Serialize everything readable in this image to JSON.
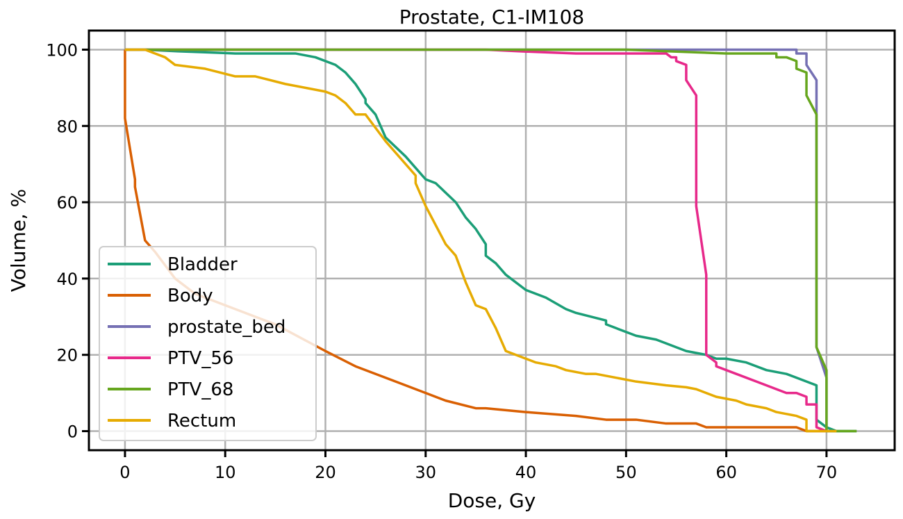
{
  "chart_data": {
    "type": "line",
    "title": "Prostate, C1-IM108",
    "xlabel": "Dose, Gy",
    "ylabel": "Volume, %",
    "xlim": [
      -3.6,
      76.8
    ],
    "ylim": [
      -5,
      105
    ],
    "xticks": [
      0,
      10,
      20,
      30,
      40,
      50,
      60,
      70
    ],
    "yticks": [
      0,
      20,
      40,
      60,
      80,
      100
    ],
    "grid": true,
    "legend_position": "lower-left",
    "series": [
      {
        "name": "Bladder",
        "color": "#1b9e77",
        "x": [
          0,
          2,
          5,
          8,
          10,
          11,
          14,
          17,
          19,
          21,
          22,
          23,
          24,
          24,
          25,
          26,
          28,
          30,
          31,
          33,
          34,
          35,
          36,
          36,
          37,
          38,
          40,
          42,
          44,
          45,
          48,
          48,
          49,
          51,
          53,
          54,
          56,
          58,
          59,
          60,
          62,
          64,
          66,
          68,
          69,
          69,
          69.5,
          70,
          71,
          73
        ],
        "y": [
          100,
          100,
          99.6,
          99.3,
          99.1,
          99,
          99,
          99,
          98,
          96,
          94,
          91,
          87,
          86,
          83,
          77,
          72,
          66,
          65,
          60,
          56,
          53,
          49,
          46,
          44,
          41,
          37,
          35,
          32,
          31,
          29,
          28,
          27,
          25,
          24,
          23,
          21,
          20,
          19,
          19,
          18,
          16,
          15,
          13,
          12,
          3,
          2,
          1,
          0,
          0
        ]
      },
      {
        "name": "Body",
        "color": "#d95f02",
        "x": [
          0,
          0,
          1,
          1,
          2,
          3,
          5,
          7,
          10,
          15,
          20,
          23,
          27,
          30,
          32,
          35,
          36,
          38,
          40,
          45,
          48,
          51,
          54,
          57,
          58,
          60,
          62,
          64,
          66,
          67,
          68,
          69,
          70
        ],
        "y": [
          100,
          82,
          66,
          64,
          50,
          47,
          40,
          36,
          33,
          28,
          21,
          17,
          13,
          10,
          8,
          6,
          6,
          5.5,
          5,
          4,
          3,
          3,
          2,
          2,
          1,
          1,
          1,
          1,
          1,
          1,
          0,
          0,
          0
        ]
      },
      {
        "name": "prostate_bed",
        "color": "#7570b3",
        "x": [
          0,
          60,
          67,
          67,
          68,
          68,
          69,
          69,
          70,
          70,
          71
        ],
        "y": [
          100,
          100,
          100,
          99,
          99,
          96,
          92,
          22,
          14,
          0,
          0
        ]
      },
      {
        "name": "PTV_56",
        "color": "#e7298a",
        "x": [
          0,
          36,
          40,
          45,
          50,
          54,
          54.5,
          55,
          55,
          56,
          56,
          57,
          57,
          58,
          58,
          59,
          59,
          61,
          63,
          65,
          66,
          67,
          68,
          68,
          69,
          69,
          70
        ],
        "y": [
          100,
          100,
          99.5,
          99,
          99,
          99,
          98,
          98,
          97,
          96,
          92,
          88,
          59,
          41,
          20,
          18,
          17,
          15,
          13,
          11,
          10,
          10,
          9,
          7,
          7,
          1,
          0
        ]
      },
      {
        "name": "PTV_68",
        "color": "#66a61e",
        "x": [
          0,
          50,
          55,
          60,
          65,
          65,
          66,
          67,
          67,
          68,
          68,
          69,
          69,
          70,
          70,
          73
        ],
        "y": [
          100,
          100,
          99.5,
          99,
          99,
          98,
          98,
          97,
          95,
          94,
          88,
          83,
          22,
          16,
          0,
          0
        ]
      },
      {
        "name": "Rectum",
        "color": "#e6ab02",
        "x": [
          0,
          2,
          3,
          4,
          5,
          8,
          11,
          13,
          16,
          20,
          21,
          22,
          23,
          24,
          26,
          29,
          29,
          30,
          32,
          33,
          34,
          35,
          36,
          37,
          38,
          40,
          41,
          43,
          44,
          46,
          47,
          48,
          51,
          54,
          56,
          57,
          59,
          61,
          62,
          64,
          65,
          66,
          67,
          68,
          68,
          69,
          71
        ],
        "y": [
          100,
          100,
          99,
          98,
          96,
          95,
          93,
          93,
          91,
          89,
          88,
          86,
          83,
          83,
          76,
          67,
          65,
          59,
          49,
          46,
          39,
          33,
          32,
          27,
          21,
          19,
          18,
          17,
          16,
          15,
          15,
          14.5,
          13,
          12,
          11.5,
          11,
          9,
          8,
          7,
          6,
          5,
          4.5,
          4,
          3,
          0,
          0,
          0
        ]
      }
    ]
  }
}
